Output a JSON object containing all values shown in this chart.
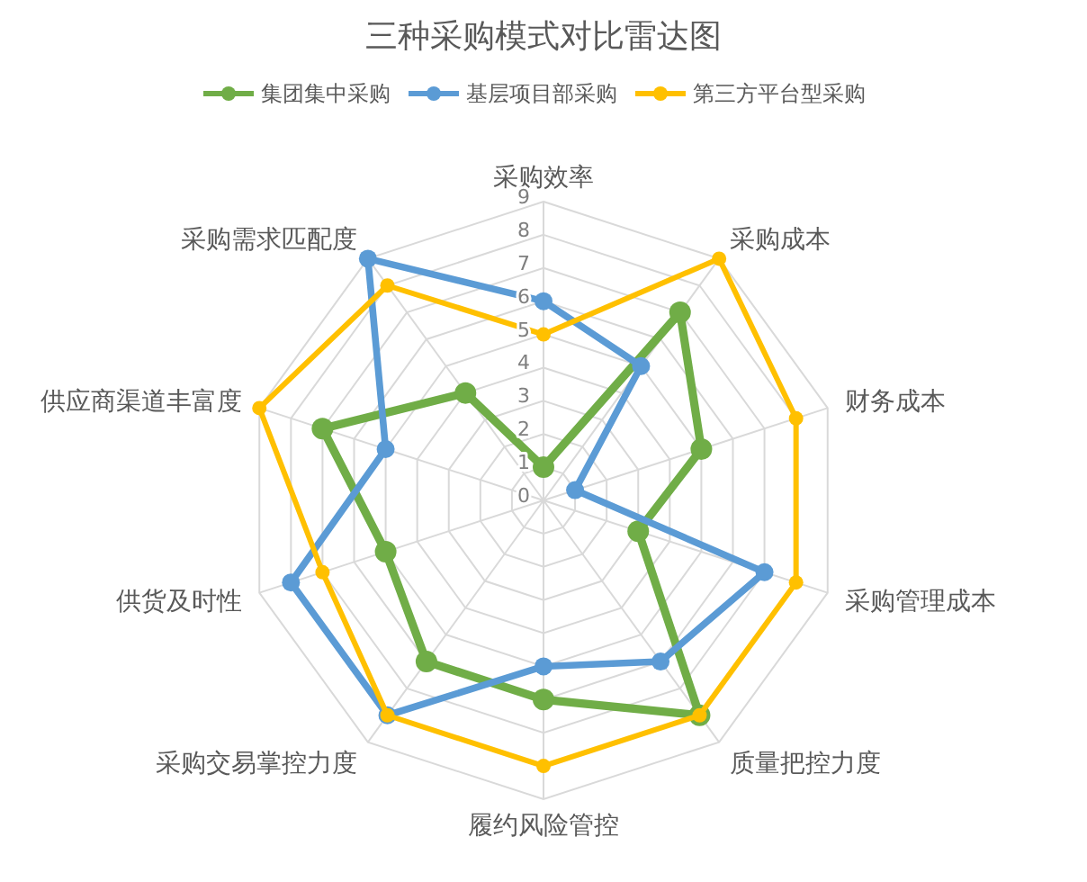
{
  "chart_data": {
    "type": "radar",
    "title": "三种采购模式对比雷达图",
    "categories": [
      "采购效率",
      "采购成本",
      "财务成本",
      "采购管理成本",
      "质量把控力度",
      "履约风险管控",
      "采购交易掌控力度",
      "供货及时性",
      "供应商渠道丰富度",
      "采购需求匹配度"
    ],
    "series": [
      {
        "name": "集团集中采购",
        "color": "#70ad47",
        "values": [
          1,
          7,
          5,
          3,
          8,
          6,
          6,
          5,
          7,
          4
        ]
      },
      {
        "name": "基层项目部采购",
        "color": "#5b9bd5",
        "values": [
          6,
          5,
          1,
          7,
          6,
          5,
          8,
          8,
          5,
          9
        ]
      },
      {
        "name": "第三方平台型采购",
        "color": "#ffc000",
        "values": [
          5,
          9,
          8,
          8,
          8,
          8,
          8,
          7,
          9,
          8
        ]
      }
    ],
    "ylim": [
      0,
      9
    ],
    "yticks": [
      0,
      1,
      2,
      3,
      4,
      5,
      6,
      7,
      8,
      9
    ],
    "grid": true,
    "legend": "top",
    "marker": "circle"
  }
}
